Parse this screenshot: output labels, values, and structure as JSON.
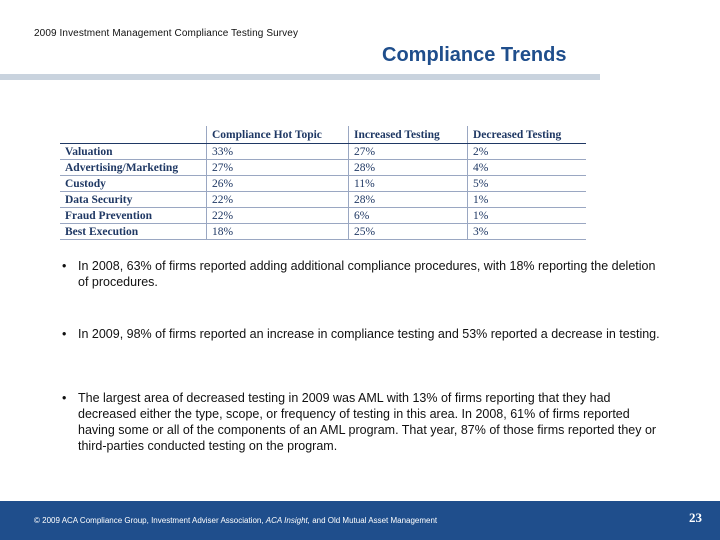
{
  "header": {
    "survey_title": "2009 Investment Management Compliance Testing Survey",
    "page_title": "Compliance Trends"
  },
  "table": {
    "headers": [
      "",
      "Compliance Hot Topic",
      "Increased Testing",
      "Decreased Testing"
    ],
    "rows": [
      [
        "Valuation",
        "33%",
        "27%",
        "2%"
      ],
      [
        "Advertising/Marketing",
        "27%",
        "28%",
        "4%"
      ],
      [
        "Custody",
        "26%",
        "11%",
        "5%"
      ],
      [
        "Data Security",
        "22%",
        "28%",
        "1%"
      ],
      [
        "Fraud Prevention",
        "22%",
        "6%",
        "1%"
      ],
      [
        "Best Execution",
        "18%",
        "25%",
        "3%"
      ]
    ]
  },
  "bullets": [
    "In 2008, 63% of firms reported adding additional compliance procedures, with 18% reporting the deletion of procedures.",
    "In 2009, 98% of firms reported an increase in compliance testing and 53% reported a decrease in testing.",
    "The largest area of decreased testing in 2009 was AML with 13% of firms reporting that they had decreased either the type, scope, or frequency of testing in this area.  In 2008, 61% of firms reported having some or all of the components of an AML program.  That year, 87% of those firms reported they or third-parties conducted testing on the program."
  ],
  "footer": {
    "copyright_pre": "© 2009 ACA Compliance Group, Investment Adviser Association, ",
    "copyright_italic": "ACA Insight,",
    "copyright_post": " and Old Mutual Asset Management",
    "page_number": "23"
  },
  "colors": {
    "accent": "#1f4e8c",
    "table_text": "#1f3864",
    "rule": "#c9d3de"
  }
}
